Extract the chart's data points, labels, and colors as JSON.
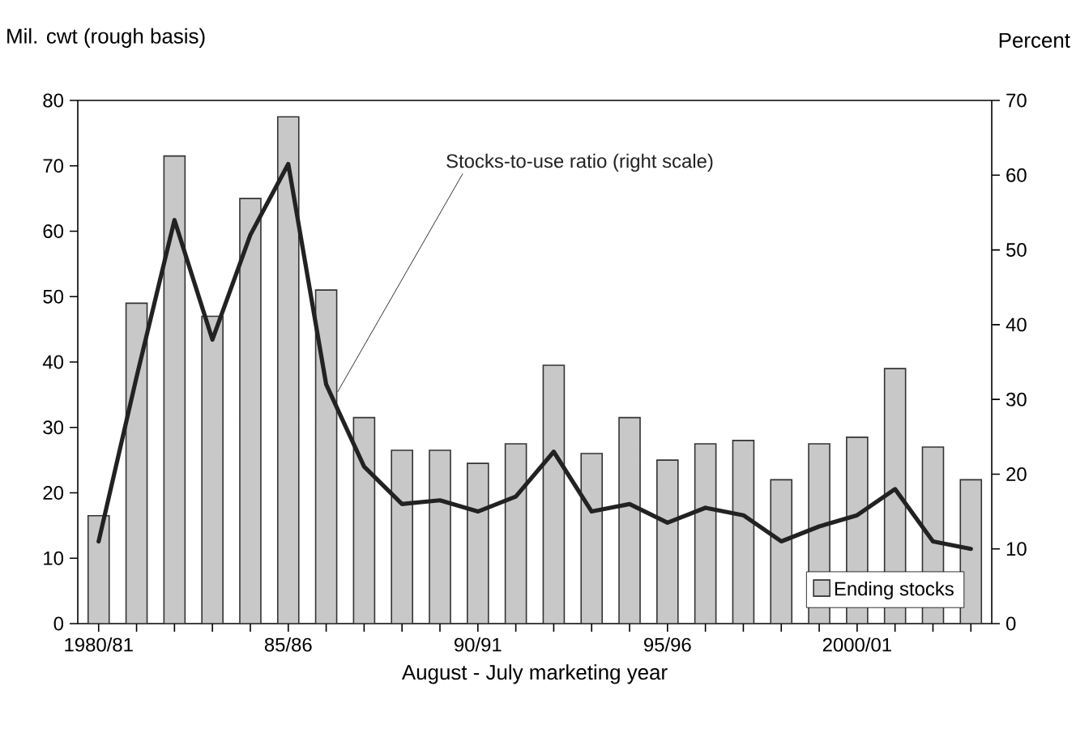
{
  "chart_data": {
    "type": "bar",
    "xlabel": "August - July marketing year",
    "ylabel": "Mil. cwt (rough basis)",
    "y2label": "Percent",
    "categories": [
      "1980/81",
      null,
      null,
      null,
      null,
      "85/86",
      null,
      null,
      null,
      null,
      "90/91",
      null,
      null,
      null,
      null,
      "95/96",
      null,
      null,
      null,
      null,
      "2000/01",
      null,
      null,
      null
    ],
    "series": [
      {
        "name": "Ending stocks",
        "color": "#c8c8c8",
        "values": [
          16.5,
          49,
          71.5,
          47,
          65,
          77.5,
          51,
          31.5,
          26.5,
          26.5,
          24.5,
          27.5,
          39.5,
          26,
          31.5,
          25,
          27.5,
          28,
          22,
          27.5,
          28.5,
          39,
          27,
          22
        ]
      },
      {
        "name": "Stocks-to-use ratio (right scale)",
        "type": "line",
        "axis": "y2",
        "color": "#222222",
        "values": [
          11,
          33,
          54,
          38,
          52,
          61.5,
          32,
          21,
          16,
          16.5,
          15,
          17,
          23,
          15,
          16,
          13.5,
          15.5,
          14.5,
          11,
          13,
          14.5,
          18,
          11,
          10
        ]
      }
    ],
    "ylim": [
      0,
      80
    ],
    "yticks": [
      0,
      10,
      20,
      30,
      40,
      50,
      60,
      70,
      80
    ],
    "y2lim": [
      0,
      70
    ],
    "y2ticks": [
      0,
      10,
      20,
      30,
      40,
      50,
      60,
      70
    ],
    "legend": "bottom right",
    "grid": false
  }
}
